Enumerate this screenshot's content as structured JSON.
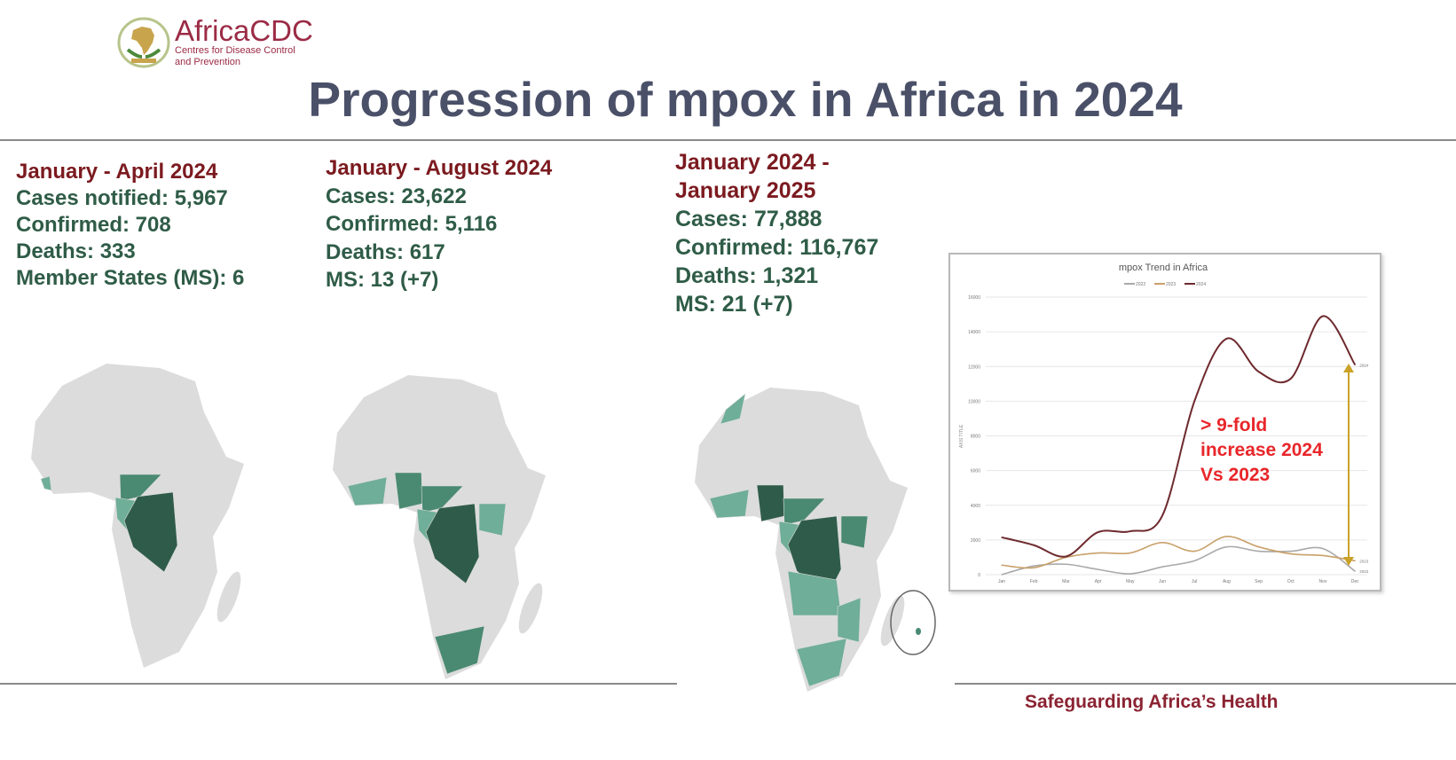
{
  "logo": {
    "name": "AfricaCDC",
    "subtitle_line1": "Centres for Disease Control",
    "subtitle_line2": "and Prevention"
  },
  "title": "Progression of mpox in Africa in 2024",
  "periods": [
    {
      "heading": "January - April 2024",
      "lines": [
        "Cases notified: 5,967",
        "Confirmed: 708",
        "Deaths: 333",
        "Member States (MS): 6"
      ]
    },
    {
      "heading": "January - August 2024",
      "lines": [
        "Cases: 23,622",
        "Confirmed: 5,116",
        "Deaths: 617",
        "MS: 13 (+7)"
      ]
    },
    {
      "heading_line1": "January 2024 -",
      "heading_line2": "January 2025",
      "lines": [
        "Cases: 77,888",
        "Confirmed: 116,767",
        "Deaths: 1,321",
        "MS: 21 (+7)"
      ]
    }
  ],
  "map_colors": {
    "base": "#dcdcdc",
    "light": "#6fae98",
    "medium": "#4a8a72",
    "dark": "#2f5c4a"
  },
  "annotation": {
    "line1": "> 9-fold",
    "line2": "increase 2024",
    "line3": "Vs 2023",
    "color": "#e8262a",
    "arrow_color": "#c9a227"
  },
  "footer": "Safeguarding Africa’s Health",
  "chart_data": {
    "type": "line",
    "title": "mpox Trend in Africa",
    "ylabel": "AXIS TITLE",
    "categories": [
      "Jan",
      "Feb",
      "Mar",
      "Apr",
      "May",
      "Jun",
      "Jul",
      "Aug",
      "Sep",
      "Oct",
      "Nov",
      "Dec"
    ],
    "ylim": [
      0,
      16000
    ],
    "yticks": [
      "0",
      "2000",
      "4000",
      "6000",
      "8000",
      "10000",
      "12000",
      "14000",
      "16000"
    ],
    "grid": true,
    "legend": "top",
    "series": [
      {
        "name": "2022",
        "color": "#a9a9a9",
        "values": [
          0,
          500,
          600,
          300,
          50,
          450,
          800,
          1600,
          1350,
          1350,
          1500,
          200
        ]
      },
      {
        "name": "2023",
        "color": "#c9a06a",
        "values": [
          550,
          400,
          1000,
          1250,
          1250,
          1850,
          1350,
          2200,
          1600,
          1200,
          1100,
          800
        ]
      },
      {
        "name": "2024",
        "color": "#6e2a2e",
        "values": [
          2150,
          1700,
          1050,
          2450,
          2500,
          3400,
          10000,
          13600,
          11700,
          11300,
          14900,
          12100
        ]
      }
    ]
  }
}
